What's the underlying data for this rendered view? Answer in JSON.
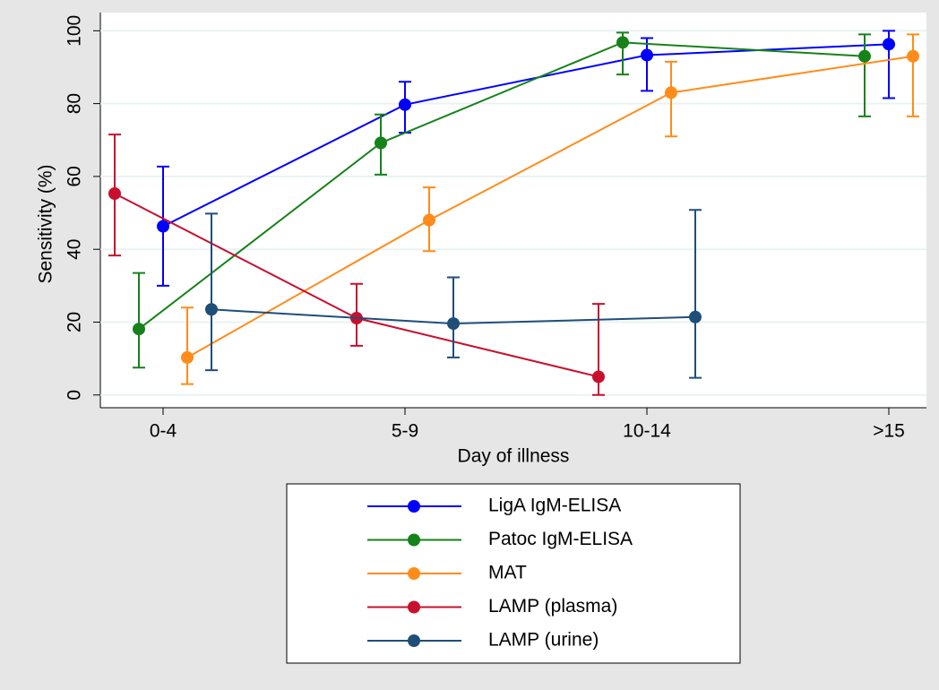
{
  "chart_data": {
    "type": "line",
    "x_label": "Day of illness",
    "y_label": "Sensitivity (%)",
    "categories": [
      "0-4",
      "5-9",
      "10-14",
      ">15"
    ],
    "ylim": [
      -3.5,
      105
    ],
    "yticks": [
      0,
      20,
      40,
      60,
      80,
      100
    ],
    "grid": true,
    "legend": "bottom",
    "series": [
      {
        "name": "LigA IgM-ELISA",
        "color": "#0000ff",
        "values": [
          46.3,
          79.7,
          93.3,
          96.3
        ],
        "lower": [
          30,
          72,
          83.5,
          81.5
        ],
        "upper": [
          62.7,
          86,
          98,
          100
        ]
      },
      {
        "name": "Patoc IgM-ELISA",
        "color": "#16821a",
        "values": [
          18.1,
          69.2,
          96.8,
          93
        ],
        "lower": [
          7.5,
          60.5,
          88,
          76.5
        ],
        "upper": [
          33.5,
          77,
          99.5,
          99
        ]
      },
      {
        "name": "MAT",
        "color": "#ff8c1a",
        "values": [
          10.3,
          48,
          83,
          93
        ],
        "lower": [
          3,
          39.5,
          71,
          76.5
        ],
        "upper": [
          24,
          57,
          91.5,
          99
        ]
      },
      {
        "name": "LAMP (plasma)",
        "color": "#c8102e",
        "values": [
          55.3,
          21.1,
          5,
          null
        ],
        "lower": [
          38.3,
          13.5,
          0,
          null
        ],
        "upper": [
          71.5,
          30.5,
          25,
          null
        ]
      },
      {
        "name": "LAMP (urine)",
        "color": "#1f4e79",
        "values": [
          23.5,
          19.6,
          21.4,
          null
        ],
        "lower": [
          6.8,
          10.3,
          4.7,
          null
        ],
        "upper": [
          49.8,
          32.3,
          50.8,
          null
        ]
      }
    ]
  }
}
